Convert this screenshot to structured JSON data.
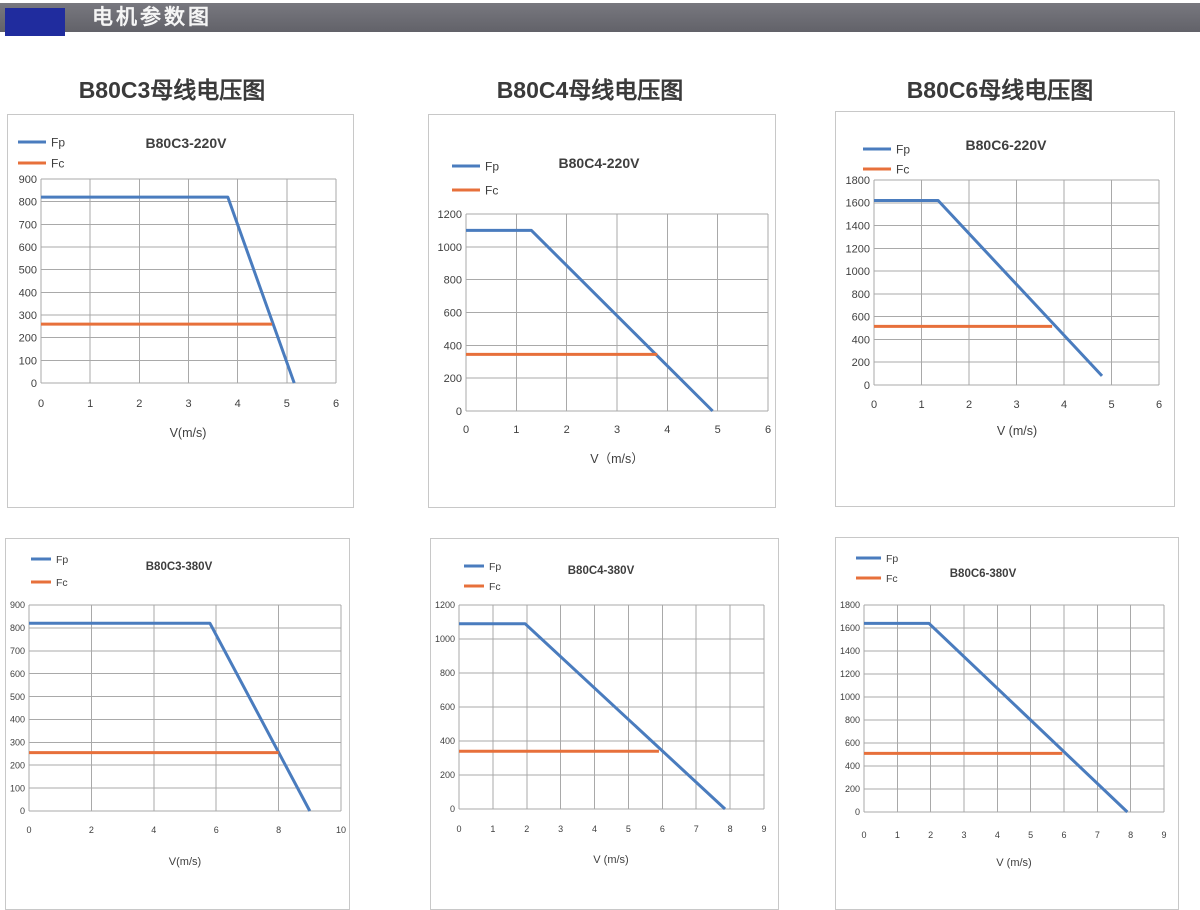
{
  "header": {
    "title": "电机参数图",
    "accent_color": "#202c9e",
    "bar_color": "#6a6a72"
  },
  "sections": [
    {
      "title": "B80C3母线电压图"
    },
    {
      "title": "B80C4母线电压图"
    },
    {
      "title": "B80C6母线电压图"
    }
  ],
  "colors": {
    "fp": "#4a7cbe",
    "fc": "#e7703b",
    "grid": "#a9a9a9",
    "tick_text": "#3f3f3f",
    "box_border": "#c8c8c8"
  },
  "chart_data": [
    {
      "type": "line",
      "title": "B80C3-220V",
      "xlabel": "V(m/s)",
      "legend": [
        "Fp",
        "Fc"
      ],
      "xlim": [
        0,
        6
      ],
      "xtick_step": 1,
      "ylim": [
        0,
        900
      ],
      "ytick_step": 100,
      "series": [
        {
          "name": "Fp",
          "color": "#4a7cbe",
          "points": [
            [
              0,
              820
            ],
            [
              3.8,
              820
            ],
            [
              5.15,
              0
            ]
          ]
        },
        {
          "name": "Fc",
          "color": "#e7703b",
          "points": [
            [
              0,
              260
            ],
            [
              4.7,
              260
            ]
          ]
        }
      ]
    },
    {
      "type": "line",
      "title": "B80C4-220V",
      "xlabel": "V（m/s）",
      "legend": [
        "Fp",
        "Fc"
      ],
      "xlim": [
        0,
        6
      ],
      "xtick_step": 1,
      "ylim": [
        0,
        1200
      ],
      "ytick_step": 200,
      "series": [
        {
          "name": "Fp",
          "color": "#4a7cbe",
          "points": [
            [
              0,
              1100
            ],
            [
              1.3,
              1100
            ],
            [
              4.9,
              0
            ]
          ]
        },
        {
          "name": "Fc",
          "color": "#e7703b",
          "points": [
            [
              0,
              345
            ],
            [
              3.8,
              345
            ]
          ]
        }
      ]
    },
    {
      "type": "line",
      "title": "B80C6-220V",
      "xlabel": "V (m/s)",
      "legend": [
        "Fp",
        "Fc"
      ],
      "xlim": [
        0,
        6
      ],
      "xtick_step": 1,
      "ylim": [
        0,
        1800
      ],
      "ytick_step": 200,
      "series": [
        {
          "name": "Fp",
          "color": "#4a7cbe",
          "points": [
            [
              0,
              1620
            ],
            [
              1.35,
              1620
            ],
            [
              4.8,
              80
            ]
          ]
        },
        {
          "name": "Fc",
          "color": "#e7703b",
          "points": [
            [
              0,
              515
            ],
            [
              3.75,
              515
            ]
          ]
        }
      ]
    },
    {
      "type": "line",
      "title": "B80C3-380V",
      "xlabel": "V(m/s)",
      "legend": [
        "Fp",
        "Fc"
      ],
      "xlim": [
        0,
        10
      ],
      "xtick_step": 2,
      "ylim": [
        0,
        900
      ],
      "ytick_step": 100,
      "series": [
        {
          "name": "Fp",
          "color": "#4a7cbe",
          "points": [
            [
              0,
              820
            ],
            [
              5.8,
              820
            ],
            [
              9,
              0
            ]
          ]
        },
        {
          "name": "Fc",
          "color": "#e7703b",
          "points": [
            [
              0,
              255
            ],
            [
              8,
              255
            ]
          ]
        }
      ]
    },
    {
      "type": "line",
      "title": "B80C4-380V",
      "xlabel": "V (m/s)",
      "legend": [
        "Fp",
        "Fc"
      ],
      "xlim": [
        0,
        9
      ],
      "xtick_step": 1,
      "ylim": [
        0,
        1200
      ],
      "ytick_step": 200,
      "series": [
        {
          "name": "Fp",
          "color": "#4a7cbe",
          "points": [
            [
              0,
              1090
            ],
            [
              1.95,
              1090
            ],
            [
              7.85,
              0
            ]
          ]
        },
        {
          "name": "Fc",
          "color": "#e7703b",
          "points": [
            [
              0,
              340
            ],
            [
              5.9,
              340
            ]
          ]
        }
      ]
    },
    {
      "type": "line",
      "title": "B80C6-380V",
      "xlabel": "V (m/s)",
      "legend": [
        "Fp",
        "Fc"
      ],
      "xlim": [
        0,
        9
      ],
      "xtick_step": 1,
      "ylim": [
        0,
        1800
      ],
      "ytick_step": 200,
      "series": [
        {
          "name": "Fp",
          "color": "#4a7cbe",
          "points": [
            [
              0,
              1640
            ],
            [
              1.95,
              1640
            ],
            [
              7.9,
              0
            ]
          ]
        },
        {
          "name": "Fc",
          "color": "#e7703b",
          "points": [
            [
              0,
              510
            ],
            [
              5.95,
              510
            ]
          ]
        }
      ]
    }
  ]
}
